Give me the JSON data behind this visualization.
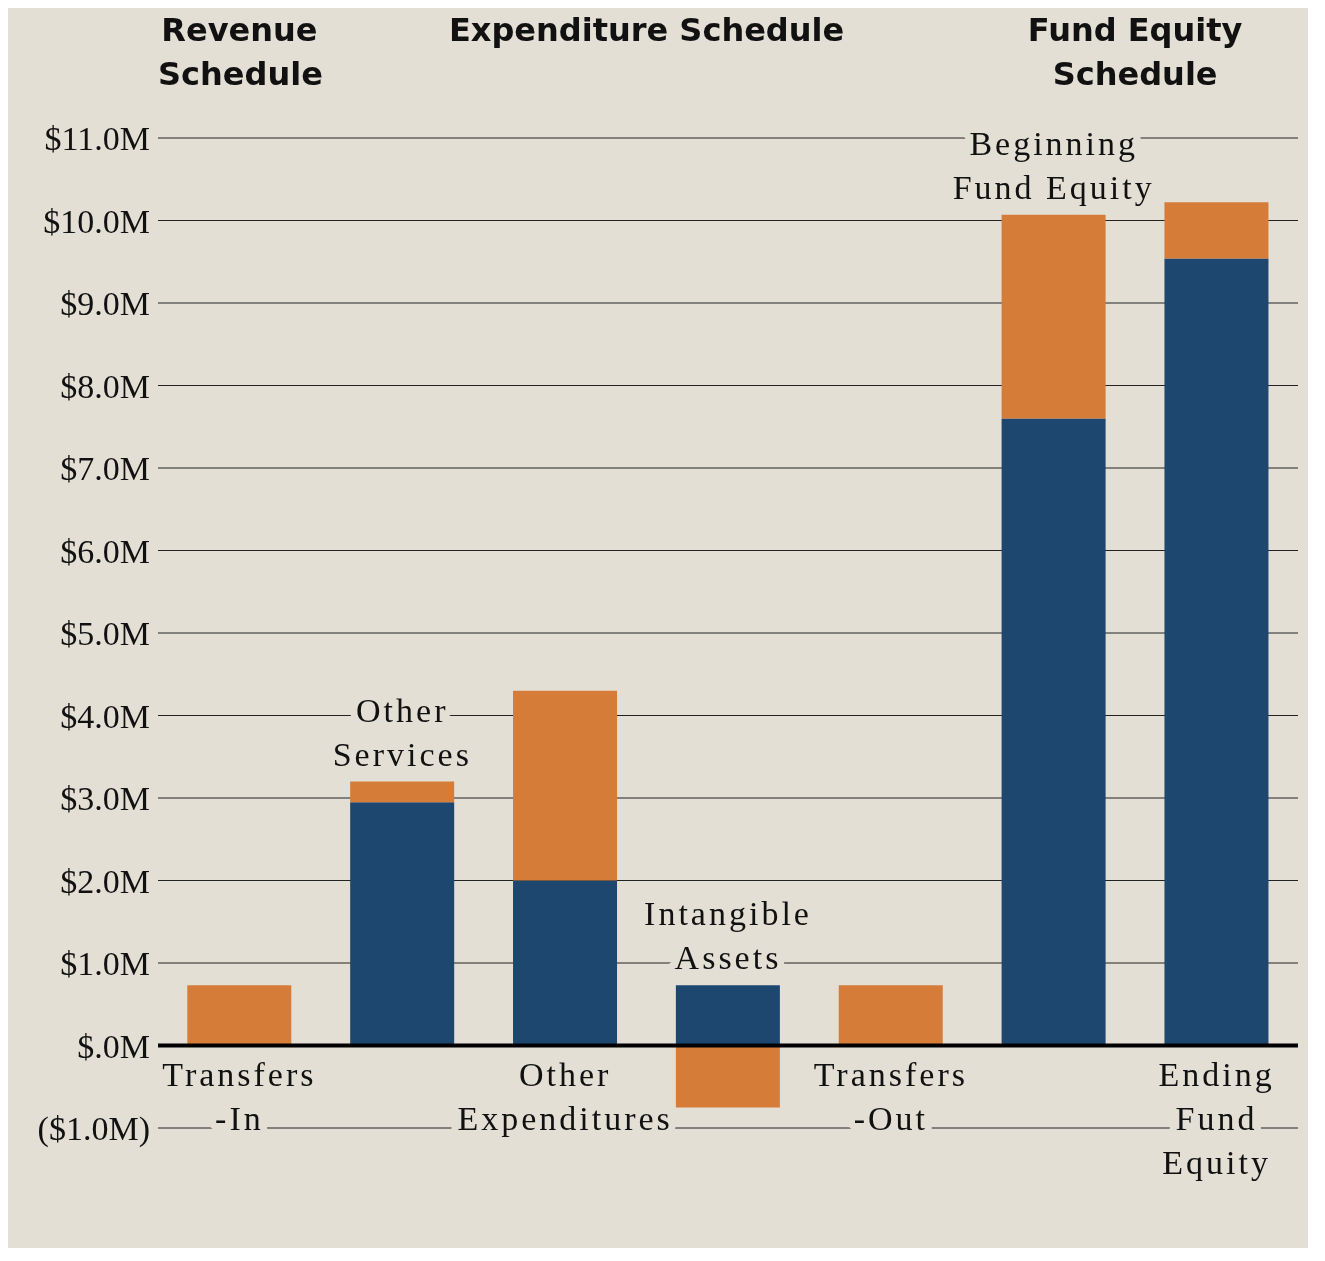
{
  "chart_data": {
    "type": "bar",
    "stacked": true,
    "categories": [
      "Transfers -In",
      "Other Services",
      "Other Expenditures",
      "Intangible Assets",
      "Transfers -Out",
      "Beginning Fund Equity",
      "Ending Fund Equity"
    ],
    "series": [
      {
        "color": "#1d476e",
        "values": [
          null,
          2.95,
          2.0,
          0.73,
          null,
          7.6,
          9.54
        ]
      },
      {
        "color": "#d57d38",
        "values": [
          0.73,
          0.25,
          2.3,
          -0.75,
          0.73,
          2.47,
          0.68
        ]
      }
    ],
    "ylim": [
      -1.0,
      11.0
    ],
    "yticks": [
      {
        "value": -1,
        "label": "($1.0M)"
      },
      {
        "value": 0,
        "label": "$.0M"
      },
      {
        "value": 1,
        "label": "$1.0M"
      },
      {
        "value": 2,
        "label": "$2.0M"
      },
      {
        "value": 3,
        "label": "$3.0M"
      },
      {
        "value": 4,
        "label": "$4.0M"
      },
      {
        "value": 5,
        "label": "$5.0M"
      },
      {
        "value": 6,
        "label": "$6.0M"
      },
      {
        "value": 7,
        "label": "$7.0M"
      },
      {
        "value": 8,
        "label": "$8.0M"
      },
      {
        "value": 9,
        "label": "$9.0M"
      },
      {
        "value": 10,
        "label": "$10.0M"
      },
      {
        "value": 11,
        "label": "$11.0M"
      }
    ],
    "grid": "y",
    "ref_lines": [
      {
        "axis": "y",
        "value": 0,
        "color": "#000000"
      }
    ],
    "annotations": [
      "Revenue Schedule",
      "Expenditure Schedule",
      "Fund Equity Schedule"
    ]
  }
}
